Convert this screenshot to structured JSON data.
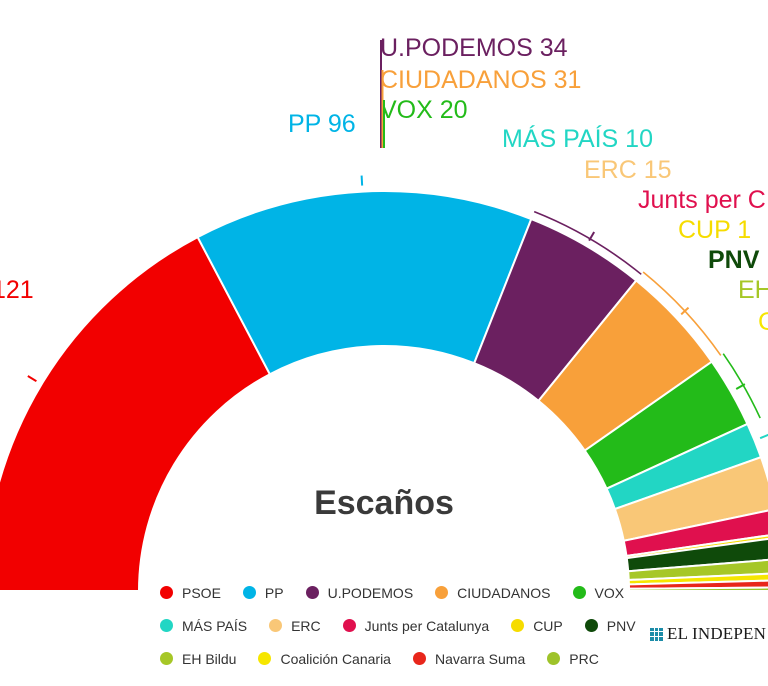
{
  "chart_data": {
    "type": "pie",
    "variant": "semicircle-parliament",
    "title": "Escaños",
    "total_seats": 350,
    "series": [
      {
        "name": "PSOE",
        "value": 121,
        "color": "#f20000",
        "label": "121"
      },
      {
        "name": "PP",
        "value": 96,
        "color": "#00b4e6",
        "label": "PP 96"
      },
      {
        "name": "U.PODEMOS",
        "value": 34,
        "color": "#6b2060",
        "label": "U.PODEMOS 34"
      },
      {
        "name": "CIUDADANOS",
        "value": 31,
        "color": "#f8a03a",
        "label": "CIUDADANOS 31"
      },
      {
        "name": "VOX",
        "value": 20,
        "color": "#23bb19",
        "label": "VOX 20"
      },
      {
        "name": "MÁS PAÍS",
        "value": 10,
        "color": "#22d6c4",
        "label": "MÁS PAÍS 10"
      },
      {
        "name": "ERC",
        "value": 15,
        "color": "#f9c777",
        "label": "ERC 15"
      },
      {
        "name": "Junts per Catalunya",
        "value": 7,
        "color": "#e0104e",
        "label": "Junts per C"
      },
      {
        "name": "CUP",
        "value": 1,
        "color": "#f6dc00",
        "label": "CUP 1"
      },
      {
        "name": "PNV",
        "value": 6,
        "color": "#0f4a0a",
        "label": "PNV"
      },
      {
        "name": "EH Bildu",
        "value": 4,
        "color": "#a6c727",
        "label": "EH"
      },
      {
        "name": "Coalición Canaria",
        "value": 2,
        "color": "#f6e600",
        "label": "C"
      },
      {
        "name": "Navarra Suma",
        "value": 2,
        "color": "#e8261b",
        "label": ""
      },
      {
        "name": "PRC",
        "value": 1,
        "color": "#9ec32a",
        "label": ""
      }
    ]
  },
  "legend": {
    "rows": [
      [
        {
          "name": "PSOE",
          "color": "#f20000"
        },
        {
          "name": "PP",
          "color": "#00b4e6"
        },
        {
          "name": "U.PODEMOS",
          "color": "#6b2060"
        },
        {
          "name": "CIUDADANOS",
          "color": "#f8a03a"
        },
        {
          "name": "VOX",
          "color": "#23bb19"
        }
      ],
      [
        {
          "name": "MÁS PAÍS",
          "color": "#22d6c4"
        },
        {
          "name": "ERC",
          "color": "#f9c777"
        },
        {
          "name": "Junts per Catalunya",
          "color": "#e0104e"
        },
        {
          "name": "CUP",
          "color": "#f6dc00"
        },
        {
          "name": "PNV",
          "color": "#0f4a0a"
        }
      ],
      [
        {
          "name": "EH Bildu",
          "color": "#a6c727"
        },
        {
          "name": "Coalición Canaria",
          "color": "#f6e600"
        },
        {
          "name": "Navarra Suma",
          "color": "#e8261b"
        },
        {
          "name": "PRC",
          "color": "#9ec32a"
        }
      ]
    ]
  },
  "brand": {
    "text": "EL INDEPEN"
  }
}
